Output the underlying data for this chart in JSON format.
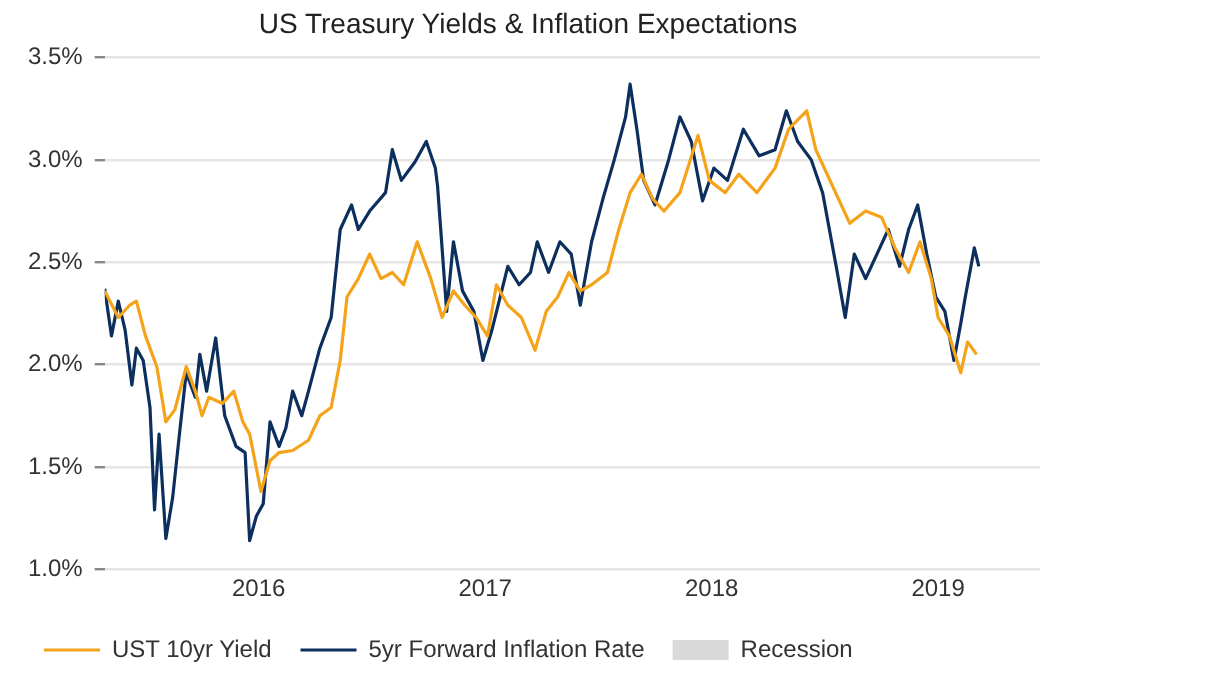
{
  "chart_data": {
    "type": "line",
    "title": "US Treasury Yields & Inflation Expectations",
    "xlim": [
      2015.32,
      2019.45
    ],
    "xticks": [
      2016,
      2017,
      2018,
      2019
    ],
    "ylim": [
      1,
      3.5
    ],
    "yticks": [
      {
        "value": 1,
        "label": "1.0%"
      },
      {
        "value": 1.5,
        "label": "1.5%"
      },
      {
        "value": 2,
        "label": "2.0%"
      },
      {
        "value": 2.5,
        "label": "2.5%"
      },
      {
        "value": 3,
        "label": "3.0%"
      },
      {
        "value": 3.5,
        "label": "3.5%"
      }
    ],
    "grid": "y",
    "legend": "bottom",
    "marker": "none",
    "line_style": "solid",
    "series": [
      {
        "name": "UST 10yr Yield",
        "color": "#f5a31a",
        "x": [
          2015.32,
          2015.38,
          2015.43,
          2015.46,
          2015.5,
          2015.55,
          2015.59,
          2015.63,
          2015.68,
          2015.72,
          2015.75,
          2015.78,
          2015.84,
          2015.89,
          2015.93,
          2015.96,
          2016.01,
          2016.05,
          2016.09,
          2016.15,
          2016.22,
          2016.27,
          2016.32,
          2016.36,
          2016.39,
          2016.44,
          2016.49,
          2016.54,
          2016.59,
          2016.64,
          2016.7,
          2016.76,
          2016.81,
          2016.86,
          2016.91,
          2016.96,
          2017.01,
          2017.05,
          2017.1,
          2017.16,
          2017.22,
          2017.27,
          2017.32,
          2017.37,
          2017.42,
          2017.47,
          2017.54,
          2017.59,
          2017.64,
          2017.69,
          2017.74,
          2017.79,
          2017.86,
          2017.94,
          2017.99,
          2018.06,
          2018.12,
          2018.2,
          2018.28,
          2018.34,
          2018.42,
          2018.46,
          2018.51,
          2018.56,
          2018.61,
          2018.68,
          2018.75,
          2018.81,
          2018.87,
          2018.92,
          2018.97,
          2019.0,
          2019.05,
          2019.1,
          2019.13,
          2019.17
        ],
        "values": [
          2.36,
          2.23,
          2.29,
          2.31,
          2.14,
          1.99,
          1.72,
          1.78,
          1.99,
          1.87,
          1.75,
          1.84,
          1.81,
          1.87,
          1.72,
          1.66,
          1.38,
          1.53,
          1.57,
          1.58,
          1.63,
          1.75,
          1.79,
          2.02,
          2.33,
          2.42,
          2.54,
          2.42,
          2.45,
          2.39,
          2.6,
          2.42,
          2.23,
          2.36,
          2.29,
          2.23,
          2.14,
          2.39,
          2.29,
          2.23,
          2.07,
          2.26,
          2.33,
          2.45,
          2.36,
          2.39,
          2.45,
          2.66,
          2.84,
          2.93,
          2.81,
          2.75,
          2.84,
          3.12,
          2.9,
          2.84,
          2.93,
          2.84,
          2.96,
          3.15,
          3.24,
          3.05,
          2.93,
          2.81,
          2.69,
          2.75,
          2.72,
          2.57,
          2.45,
          2.6,
          2.42,
          2.23,
          2.14,
          1.96,
          2.11,
          2.05
        ]
      },
      {
        "name": "5yr Forward Inflation Rate",
        "color": "#0d2f5e",
        "x": [
          2015.32,
          2015.35,
          2015.38,
          2015.41,
          2015.44,
          2015.46,
          2015.49,
          2015.52,
          2015.54,
          2015.56,
          2015.59,
          2015.62,
          2015.65,
          2015.68,
          2015.72,
          2015.74,
          2015.77,
          2015.81,
          2015.85,
          2015.9,
          2015.94,
          2015.96,
          2015.99,
          2016.02,
          2016.05,
          2016.09,
          2016.12,
          2016.15,
          2016.19,
          2016.22,
          2016.27,
          2016.32,
          2016.36,
          2016.41,
          2016.44,
          2016.49,
          2016.56,
          2016.59,
          2016.63,
          2016.69,
          2016.74,
          2016.78,
          2016.79,
          2016.83,
          2016.86,
          2016.9,
          2016.95,
          2016.99,
          2017.03,
          2017.1,
          2017.15,
          2017.2,
          2017.23,
          2017.28,
          2017.33,
          2017.38,
          2017.42,
          2017.47,
          2017.52,
          2017.57,
          2017.62,
          2017.64,
          2017.67,
          2017.7,
          2017.75,
          2017.81,
          2017.86,
          2017.91,
          2017.96,
          2018.01,
          2018.07,
          2018.14,
          2018.21,
          2018.28,
          2018.33,
          2018.38,
          2018.44,
          2018.49,
          2018.55,
          2018.59,
          2018.63,
          2018.68,
          2018.73,
          2018.78,
          2018.83,
          2018.87,
          2018.91,
          2018.95,
          2018.99,
          2019.03,
          2019.07,
          2019.1,
          2019.12,
          2019.16,
          2019.18
        ],
        "values": [
          2.37,
          2.14,
          2.31,
          2.17,
          1.9,
          2.08,
          2.02,
          1.79,
          1.29,
          1.66,
          1.15,
          1.35,
          1.66,
          1.96,
          1.84,
          2.05,
          1.87,
          2.13,
          1.75,
          1.6,
          1.57,
          1.14,
          1.26,
          1.32,
          1.72,
          1.6,
          1.69,
          1.87,
          1.75,
          1.87,
          2.08,
          2.23,
          2.66,
          2.78,
          2.66,
          2.75,
          2.84,
          3.05,
          2.9,
          2.99,
          3.09,
          2.96,
          2.87,
          2.26,
          2.6,
          2.36,
          2.26,
          2.02,
          2.17,
          2.48,
          2.39,
          2.45,
          2.6,
          2.45,
          2.6,
          2.54,
          2.29,
          2.6,
          2.81,
          3.0,
          3.21,
          3.37,
          3.15,
          2.9,
          2.78,
          3.0,
          3.21,
          3.09,
          2.8,
          2.96,
          2.9,
          3.15,
          3.02,
          3.05,
          3.24,
          3.09,
          3.0,
          2.84,
          2.48,
          2.23,
          2.54,
          2.42,
          2.54,
          2.66,
          2.48,
          2.66,
          2.78,
          2.54,
          2.33,
          2.26,
          2.02,
          2.2,
          2.33,
          2.57,
          2.48
        ]
      },
      {
        "name": "Recession",
        "type": "area",
        "color": "#d9d9d9"
      }
    ]
  }
}
